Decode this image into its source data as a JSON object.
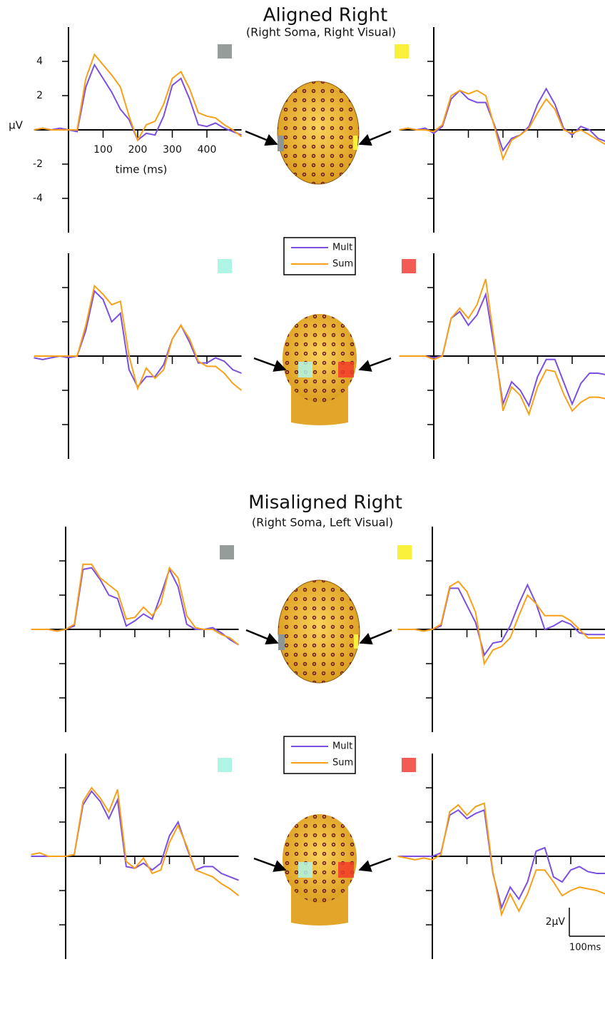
{
  "sections": [
    {
      "title": "Aligned Right",
      "subtitle": "(Right Soma, Right Visual)"
    },
    {
      "title": "Misaligned Right",
      "subtitle": "(Right Soma, Left Visual)"
    }
  ],
  "scale_bar": {
    "y_label": "2µV",
    "x_label": "100ms"
  },
  "chart_data": [
    {
      "type": "line",
      "xlabel": "time (ms)",
      "ylabel": "µV",
      "tick_labels": true,
      "marker_color": "#959c9a",
      "x": [
        -100,
        -75,
        -50,
        -25,
        0,
        25,
        50,
        75,
        100,
        125,
        150,
        175,
        200,
        225,
        250,
        275,
        300,
        325,
        350,
        375,
        400,
        425,
        450,
        475,
        500
      ],
      "xlim": [
        -100,
        500
      ],
      "ylim": [
        -6,
        6
      ],
      "xticks": [
        100,
        200,
        300,
        400
      ],
      "yticks": [
        -4,
        -2,
        2,
        4
      ],
      "series": [
        {
          "name": "Mult",
          "color": "#7b4fe0",
          "values": [
            0,
            0.1,
            0,
            0.1,
            0,
            -0.1,
            2.5,
            3.8,
            3,
            2.2,
            1.2,
            0.6,
            -0.6,
            -0.2,
            -0.3,
            0.8,
            2.6,
            3.0,
            1.8,
            0.3,
            0.2,
            0.4,
            0.1,
            -0.1,
            -0.3
          ]
        },
        {
          "name": "Sum",
          "color": "#f7a11a",
          "values": [
            0,
            0.1,
            0,
            0,
            0,
            0,
            3,
            4.4,
            3.8,
            3.2,
            2.5,
            0.8,
            -0.6,
            0.3,
            0.5,
            1.5,
            3.0,
            3.4,
            2.4,
            1.0,
            0.8,
            0.7,
            0.3,
            0,
            -0.4
          ]
        }
      ]
    },
    {
      "type": "line",
      "tick_labels": false,
      "marker_color": "#f9f03c",
      "x": [
        -100,
        -75,
        -50,
        -25,
        0,
        25,
        50,
        75,
        100,
        125,
        150,
        175,
        200,
        225,
        250,
        275,
        300,
        325,
        350,
        375,
        400,
        425,
        450,
        475,
        500
      ],
      "xlim": [
        -100,
        500
      ],
      "ylim": [
        -6,
        6
      ],
      "xticks": [
        100,
        200,
        300,
        400
      ],
      "yticks": [
        -4,
        -2,
        2,
        4
      ],
      "series": [
        {
          "name": "Mult",
          "color": "#7b4fe0",
          "values": [
            0,
            0.1,
            0,
            0.1,
            -0.2,
            0.2,
            1.8,
            2.3,
            1.8,
            1.6,
            1.6,
            0.3,
            -1.2,
            -0.5,
            -0.3,
            0.2,
            1.5,
            2.4,
            1.5,
            0.1,
            -0.3,
            0.2,
            0,
            -0.5,
            -0.7
          ]
        },
        {
          "name": "Sum",
          "color": "#f7a11a",
          "values": [
            0,
            0.1,
            0,
            0,
            -0.1,
            0.3,
            2.0,
            2.3,
            2.1,
            2.3,
            2.0,
            0.2,
            -1.7,
            -0.6,
            -0.3,
            0.1,
            1.0,
            1.8,
            1.2,
            0,
            -0.2,
            0,
            -0.3,
            -0.6,
            -0.9
          ]
        }
      ]
    },
    {
      "type": "line",
      "tick_labels": false,
      "marker_color": "#aff5e6",
      "x": [
        -100,
        -75,
        -50,
        -25,
        0,
        25,
        50,
        75,
        100,
        125,
        150,
        175,
        200,
        225,
        250,
        275,
        300,
        325,
        350,
        375,
        400,
        425,
        450,
        475,
        500
      ],
      "xlim": [
        -100,
        500
      ],
      "ylim": [
        -6,
        6
      ],
      "xticks": [
        100,
        200,
        300,
        400
      ],
      "yticks": [
        -4,
        -2,
        2,
        4
      ],
      "series": [
        {
          "name": "Mult",
          "color": "#7b4fe0",
          "values": [
            -0.1,
            -0.2,
            -0.1,
            0,
            -0.1,
            0,
            1.5,
            3.8,
            3.3,
            2.0,
            2.5,
            -0.8,
            -1.8,
            -1.2,
            -1.2,
            -0.5,
            1.0,
            1.8,
            0.8,
            -0.4,
            -0.4,
            -0.1,
            -0.3,
            -0.8,
            -1.0
          ]
        },
        {
          "name": "Sum",
          "color": "#f7a11a",
          "values": [
            0,
            0,
            0,
            0,
            0,
            0,
            1.8,
            4.1,
            3.6,
            3.0,
            3.2,
            0,
            -1.9,
            -0.7,
            -1.3,
            -0.8,
            1.0,
            1.8,
            1.0,
            -0.3,
            -0.6,
            -0.6,
            -1.0,
            -1.6,
            -2.0
          ]
        }
      ]
    },
    {
      "type": "line",
      "tick_labels": false,
      "marker_color": "#f25c54",
      "x": [
        -100,
        -75,
        -50,
        -25,
        0,
        25,
        50,
        75,
        100,
        125,
        150,
        175,
        200,
        225,
        250,
        275,
        300,
        325,
        350,
        375,
        400,
        425,
        450,
        475,
        500
      ],
      "xlim": [
        -100,
        500
      ],
      "ylim": [
        -6,
        6
      ],
      "xticks": [
        100,
        200,
        300,
        400
      ],
      "yticks": [
        -4,
        -2,
        2,
        4
      ],
      "series": [
        {
          "name": "Mult",
          "color": "#7b4fe0",
          "values": [
            0,
            0,
            0,
            0,
            -0.1,
            0,
            2.2,
            2.6,
            1.8,
            2.4,
            3.6,
            0.5,
            -2.8,
            -1.5,
            -2.0,
            -2.9,
            -1.2,
            -0.2,
            -0.2,
            -1.5,
            -2.8,
            -1.6,
            -1.0,
            -1.0,
            -1.1
          ]
        },
        {
          "name": "Sum",
          "color": "#f7a11a",
          "values": [
            0,
            0,
            0,
            0,
            -0.2,
            0,
            2.2,
            2.8,
            2.2,
            3.0,
            4.5,
            0.8,
            -3.2,
            -1.8,
            -2.3,
            -3.4,
            -1.8,
            -0.8,
            -0.9,
            -2.2,
            -3.2,
            -2.7,
            -2.4,
            -2.4,
            -2.5
          ]
        }
      ]
    },
    {
      "type": "line",
      "tick_labels": false,
      "marker_color": "#959c9a",
      "x": [
        -100,
        -75,
        -50,
        -25,
        0,
        25,
        50,
        75,
        100,
        125,
        150,
        175,
        200,
        225,
        250,
        275,
        300,
        325,
        350,
        375,
        400,
        425,
        450,
        475,
        500
      ],
      "xlim": [
        -100,
        500
      ],
      "ylim": [
        -6,
        6
      ],
      "xticks": [
        100,
        200,
        300,
        400
      ],
      "yticks": [
        -4,
        -2,
        2,
        4
      ],
      "series": [
        {
          "name": "Mult",
          "color": "#7b4fe0",
          "values": [
            0,
            0,
            0,
            -0.1,
            0,
            0.2,
            3.5,
            3.6,
            2.9,
            2.0,
            1.8,
            0.2,
            0.5,
            0.9,
            0.6,
            2.0,
            3.5,
            2.5,
            0.3,
            0,
            0,
            0.1,
            -0.2,
            -0.6,
            -0.9
          ]
        },
        {
          "name": "Sum",
          "color": "#f7a11a",
          "values": [
            0,
            0,
            0,
            -0.1,
            0,
            0.3,
            3.8,
            3.8,
            3.0,
            2.6,
            2.2,
            0.6,
            0.7,
            1.3,
            0.8,
            1.5,
            3.6,
            3.0,
            0.8,
            0.1,
            0,
            0,
            -0.3,
            -0.5,
            -0.9
          ]
        }
      ]
    },
    {
      "type": "line",
      "tick_labels": false,
      "marker_color": "#f9f03c",
      "x": [
        -100,
        -75,
        -50,
        -25,
        0,
        25,
        50,
        75,
        100,
        125,
        150,
        175,
        200,
        225,
        250,
        275,
        300,
        325,
        350,
        375,
        400,
        425,
        450,
        475,
        500
      ],
      "xlim": [
        -100,
        500
      ],
      "ylim": [
        -6,
        6
      ],
      "xticks": [
        100,
        200,
        300,
        400
      ],
      "yticks": [
        -4,
        -2,
        2,
        4
      ],
      "series": [
        {
          "name": "Mult",
          "color": "#7b4fe0",
          "values": [
            0,
            0,
            0,
            -0.1,
            0,
            0.2,
            2.4,
            2.4,
            1.4,
            0.4,
            -1.5,
            -0.8,
            -0.7,
            0.2,
            1.5,
            2.6,
            1.5,
            0,
            0.2,
            0.5,
            0.3,
            -0.2,
            -0.3,
            -0.3,
            -0.3
          ]
        },
        {
          "name": "Sum",
          "color": "#f7a11a",
          "values": [
            0,
            0,
            0,
            -0.1,
            0,
            0.3,
            2.5,
            2.8,
            2.2,
            1.0,
            -2.0,
            -1.2,
            -1.0,
            -0.5,
            0.8,
            2.0,
            1.5,
            0.8,
            0.8,
            0.8,
            0.5,
            0,
            -0.5,
            -0.5,
            -0.5
          ]
        }
      ]
    },
    {
      "type": "line",
      "tick_labels": false,
      "marker_color": "#aff5e6",
      "x": [
        -100,
        -75,
        -50,
        -25,
        0,
        25,
        50,
        75,
        100,
        125,
        150,
        175,
        200,
        225,
        250,
        275,
        300,
        325,
        350,
        375,
        400,
        425,
        450,
        475,
        500
      ],
      "xlim": [
        -100,
        500
      ],
      "ylim": [
        -6,
        6
      ],
      "xticks": [
        100,
        200,
        300,
        400
      ],
      "yticks": [
        -4,
        -2,
        2,
        4
      ],
      "series": [
        {
          "name": "Mult",
          "color": "#7b4fe0",
          "values": [
            0,
            0,
            0,
            0,
            0,
            0.1,
            3.0,
            3.8,
            3.2,
            2.2,
            3.3,
            -0.6,
            -0.7,
            -0.4,
            -0.8,
            -0.4,
            1.2,
            2.0,
            0.5,
            -0.8,
            -0.6,
            -0.6,
            -1.0,
            -1.2,
            -1.4
          ]
        },
        {
          "name": "Sum",
          "color": "#f7a11a",
          "values": [
            0.1,
            0.2,
            0,
            0,
            0,
            0.1,
            3.2,
            4.0,
            3.4,
            2.6,
            3.9,
            -0.3,
            -0.7,
            -0.1,
            -1.0,
            -0.8,
            0.8,
            1.8,
            0.6,
            -0.8,
            -1.0,
            -1.2,
            -1.6,
            -1.9,
            -2.3
          ]
        }
      ]
    },
    {
      "type": "line",
      "tick_labels": false,
      "marker_color": "#f25c54",
      "x": [
        -100,
        -75,
        -50,
        -25,
        0,
        25,
        50,
        75,
        100,
        125,
        150,
        175,
        200,
        225,
        250,
        275,
        300,
        325,
        350,
        375,
        400,
        425,
        450,
        475,
        500
      ],
      "xlim": [
        -100,
        500
      ],
      "ylim": [
        -6,
        6
      ],
      "xticks": [
        100,
        200,
        300,
        400
      ],
      "yticks": [
        -4,
        -2,
        2,
        4
      ],
      "series": [
        {
          "name": "Mult",
          "color": "#7b4fe0",
          "values": [
            0,
            0,
            0,
            0,
            0,
            0.2,
            2.4,
            2.7,
            2.2,
            2.5,
            2.7,
            -1.0,
            -3.0,
            -1.8,
            -2.5,
            -1.5,
            0.3,
            0.5,
            -1.2,
            -1.5,
            -0.8,
            -0.6,
            -0.9,
            -1.0,
            -1.0
          ]
        },
        {
          "name": "Sum",
          "color": "#f7a11a",
          "values": [
            0,
            -0.1,
            -0.2,
            -0.1,
            -0.2,
            0.1,
            2.6,
            3.0,
            2.4,
            2.9,
            3.1,
            -0.9,
            -3.4,
            -2.2,
            -3.2,
            -2.2,
            -0.8,
            -0.8,
            -1.5,
            -2.3,
            -2.0,
            -1.8,
            -1.9,
            -2.0,
            -2.2
          ]
        }
      ]
    }
  ]
}
